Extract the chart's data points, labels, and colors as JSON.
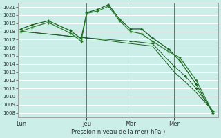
{
  "background_color": "#cceee8",
  "grid_color": "#b0ddd6",
  "line_color": "#1a6020",
  "ylabel": "Pression niveau de la mer( hPa )",
  "ylim": [
    1007.5,
    1021.5
  ],
  "yticks": [
    1008,
    1009,
    1010,
    1011,
    1012,
    1013,
    1014,
    1015,
    1016,
    1017,
    1018,
    1019,
    1020,
    1021
  ],
  "xtick_labels": [
    "Lun",
    "Jeu",
    "Mar",
    "Mer"
  ],
  "xtick_positions": [
    0,
    12,
    20,
    28
  ],
  "xmax": 36,
  "series1_x": [
    0,
    2,
    5,
    9,
    11,
    12,
    14,
    16,
    18,
    20,
    22,
    24,
    27,
    29,
    32,
    35
  ],
  "series1_y": [
    1018.3,
    1018.8,
    1019.3,
    1018.1,
    1017.1,
    1020.3,
    1020.7,
    1021.3,
    1019.5,
    1018.3,
    1018.3,
    1017.2,
    1015.8,
    1014.4,
    1011.5,
    1008.0
  ],
  "series2_x": [
    0,
    2,
    5,
    9,
    11,
    12,
    14,
    16,
    18,
    20,
    22,
    24,
    27,
    29,
    32,
    35
  ],
  "series2_y": [
    1018.0,
    1018.5,
    1019.1,
    1017.8,
    1016.8,
    1020.2,
    1020.5,
    1021.1,
    1019.3,
    1018.0,
    1017.7,
    1016.8,
    1015.5,
    1014.8,
    1012.0,
    1008.1
  ],
  "series3_x": [
    0,
    12,
    20,
    24,
    28,
    30,
    32,
    34,
    35
  ],
  "series3_y": [
    1018.0,
    1017.2,
    1016.8,
    1016.5,
    1013.7,
    1012.5,
    1011.0,
    1009.2,
    1008.2
  ],
  "series4_x": [
    0,
    12,
    20,
    24,
    28,
    30,
    32,
    34,
    35
  ],
  "series4_y": [
    1018.0,
    1017.2,
    1016.5,
    1016.2,
    1013.0,
    1011.8,
    1010.5,
    1009.0,
    1008.3
  ]
}
